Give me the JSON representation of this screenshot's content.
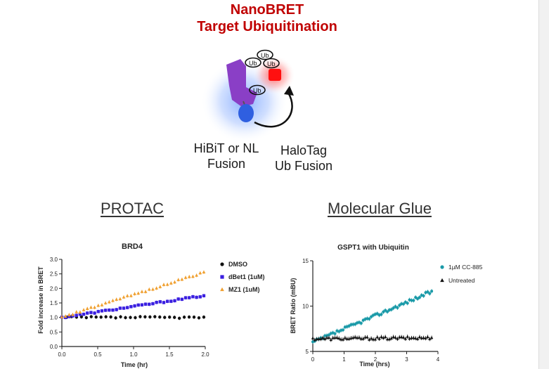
{
  "header": {
    "title_line1": "NanoBRET",
    "title_line2": "Target Ubiquitination"
  },
  "diagram": {
    "left_label_line1": "HiBiT or NL",
    "left_label_line2": "Fusion",
    "right_label_line1": "HaloTag",
    "right_label_line2": "Ub Fusion",
    "ub_label": "Ub"
  },
  "sections": {
    "left": "PROTAC",
    "right": "Molecular Glue"
  },
  "chart_data": [
    {
      "type": "scatter",
      "title": "BRD4",
      "xlabel": "Time (hr)",
      "ylabel": "Fold increase in BRET",
      "xlim": [
        0,
        2
      ],
      "ylim": [
        0,
        3
      ],
      "xticks": [
        "0.0",
        "0.5",
        "1.0",
        "1.5",
        "2.0"
      ],
      "yticks": [
        "0.0",
        "0.5",
        "1.0",
        "1.5",
        "2.0",
        "2.5",
        "3.0"
      ],
      "legend_position": "right",
      "series": [
        {
          "name": "DMSO",
          "marker": "circle",
          "color": "#111111",
          "x_start": 0.0,
          "x_end": 1.98,
          "n": 30,
          "y_start": 1.0,
          "y_end": 1.0
        },
        {
          "name": "dBet1 (1uM)",
          "marker": "square",
          "color": "#3a1fe0",
          "x_start": 0.0,
          "x_end": 1.98,
          "n": 40,
          "y_start": 1.0,
          "y_end": 1.75
        },
        {
          "name": "MZ1 (1uM)",
          "marker": "triangle",
          "color": "#f0a030",
          "x_start": 0.0,
          "x_end": 1.98,
          "n": 40,
          "y_start": 1.0,
          "y_end": 2.55
        }
      ]
    },
    {
      "type": "scatter",
      "title": "GSPT1 with Ubiquitin",
      "xlabel": "Time (hrs)",
      "ylabel": "BRET Ratio (mBU)",
      "xlim": [
        0,
        4
      ],
      "ylim": [
        5,
        15
      ],
      "xticks": [
        "0",
        "1",
        "2",
        "3",
        "4"
      ],
      "yticks": [
        "5",
        "10",
        "15"
      ],
      "legend_position": "right",
      "series": [
        {
          "name": "1µM CC-885",
          "marker": "circle",
          "color": "#1a9aa8",
          "x_start": 0.0,
          "x_end": 3.8,
          "n": 60,
          "y_start": 6.0,
          "y_end": 11.6
        },
        {
          "name": "Untreated",
          "marker": "triangle",
          "color": "#111111",
          "x_start": 0.0,
          "x_end": 3.8,
          "n": 60,
          "y_start": 6.4,
          "y_end": 6.5
        }
      ]
    }
  ]
}
